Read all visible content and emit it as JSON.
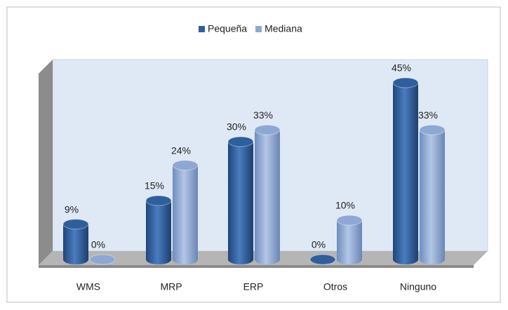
{
  "chart_data": {
    "type": "bar",
    "categories": [
      "WMS",
      "MRP",
      "ERP",
      "Otros",
      "Ninguno"
    ],
    "series": [
      {
        "name": "Pequeña",
        "color": "#2f5e9c",
        "values": [
          9,
          15,
          30,
          0,
          45
        ],
        "value_labels": [
          "9%",
          "15%",
          "30%",
          "0%",
          "45%"
        ]
      },
      {
        "name": "Mediana",
        "color": "#8ea7d3",
        "values": [
          0,
          24,
          33,
          10,
          33
        ],
        "value_labels": [
          "0%",
          "24%",
          "33%",
          "10%",
          "33%"
        ]
      }
    ],
    "legend": "top"
  }
}
